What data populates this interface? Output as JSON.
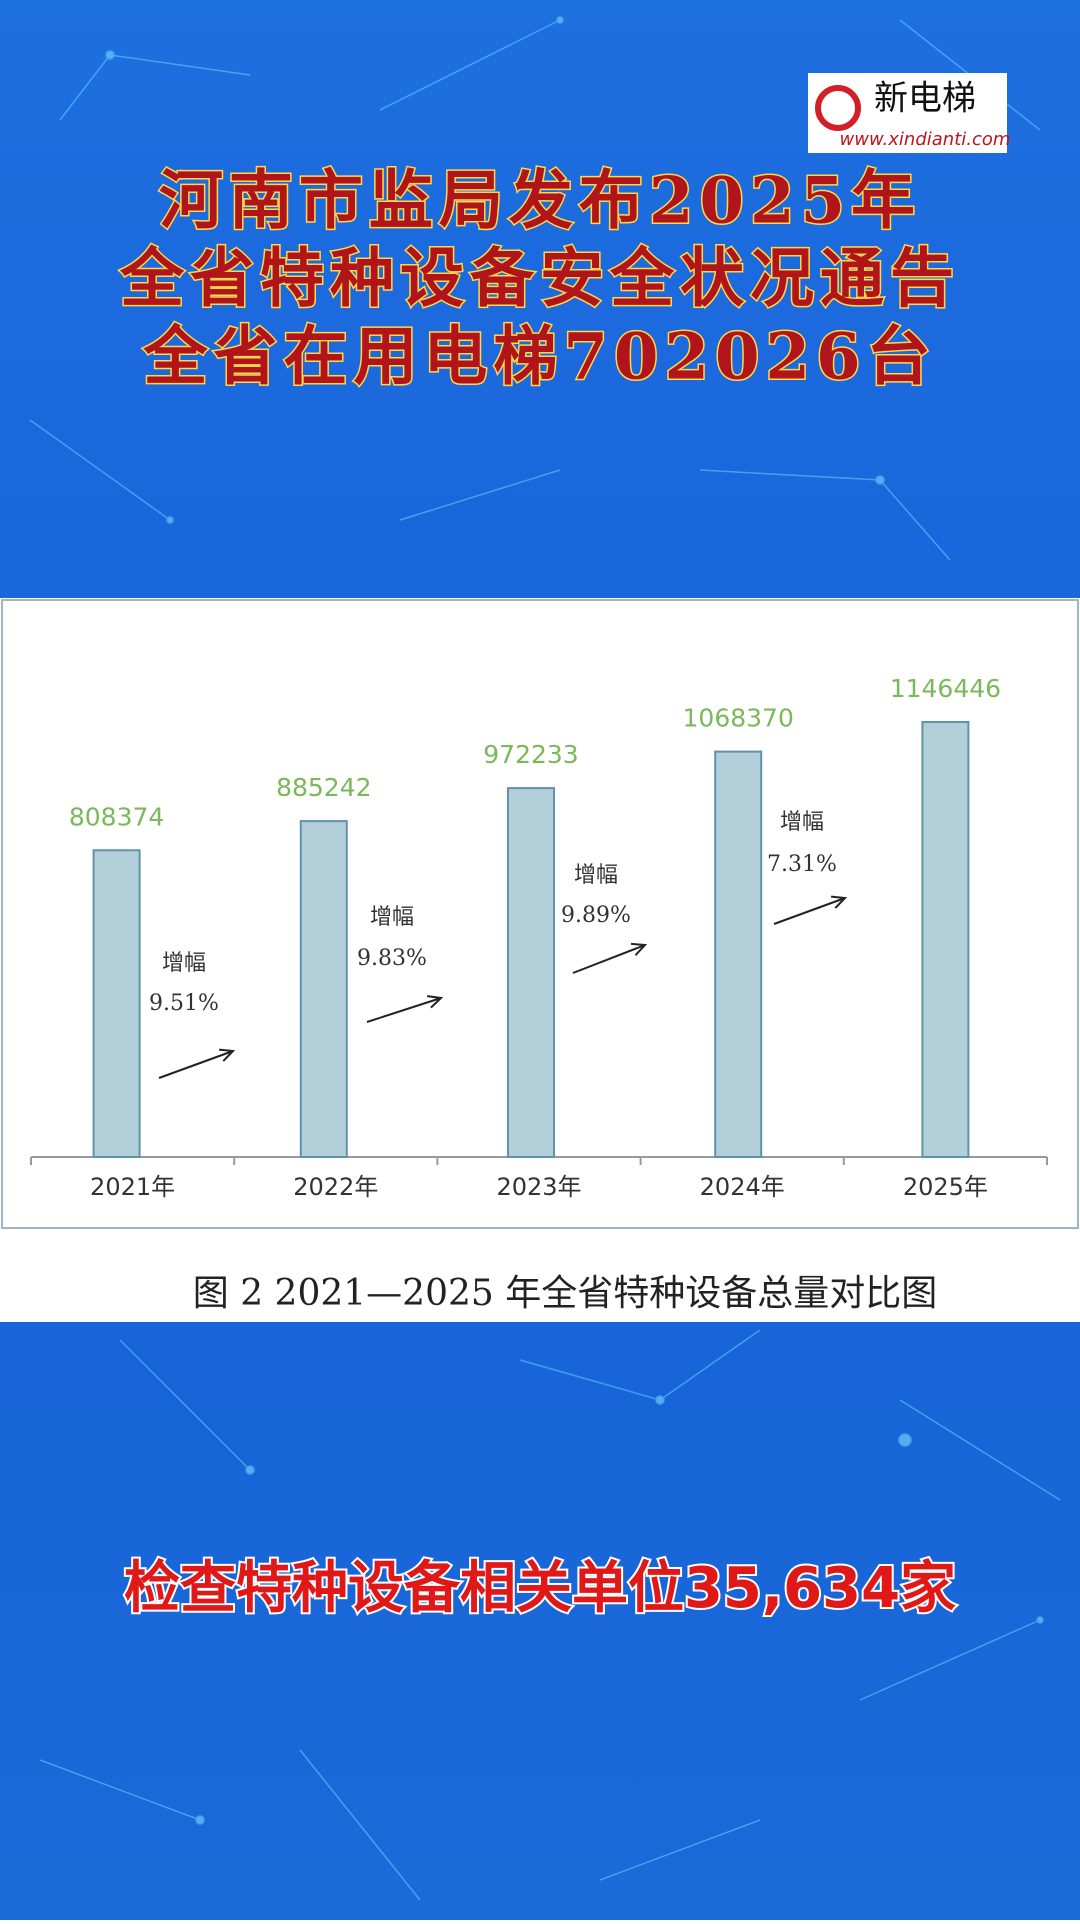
{
  "logo": {
    "name": "新电梯",
    "url": "www.xindianti.com"
  },
  "header": {
    "lines": [
      "河南市监局发布2025年",
      "全省特种设备安全状况通告",
      "全省在用电梯702026台"
    ]
  },
  "chart_data": {
    "type": "bar",
    "categories": [
      "2021年",
      "2022年",
      "2023年",
      "2024年",
      "2025年"
    ],
    "values": [
      808374,
      885242,
      972233,
      1068370,
      1146446
    ],
    "color": "#b3cfda",
    "annotations": [
      {
        "label": "增幅",
        "text": "9.51%"
      },
      {
        "label": "增幅",
        "text": "9.83%"
      },
      {
        "label": "增幅",
        "text": "9.89%"
      },
      {
        "label": "增幅",
        "text": "7.31%"
      }
    ],
    "caption": "图 2 2021—2025 年全省特种设备总量对比图"
  },
  "footer": {
    "text": "检查特种设备相关单位35,634家"
  }
}
